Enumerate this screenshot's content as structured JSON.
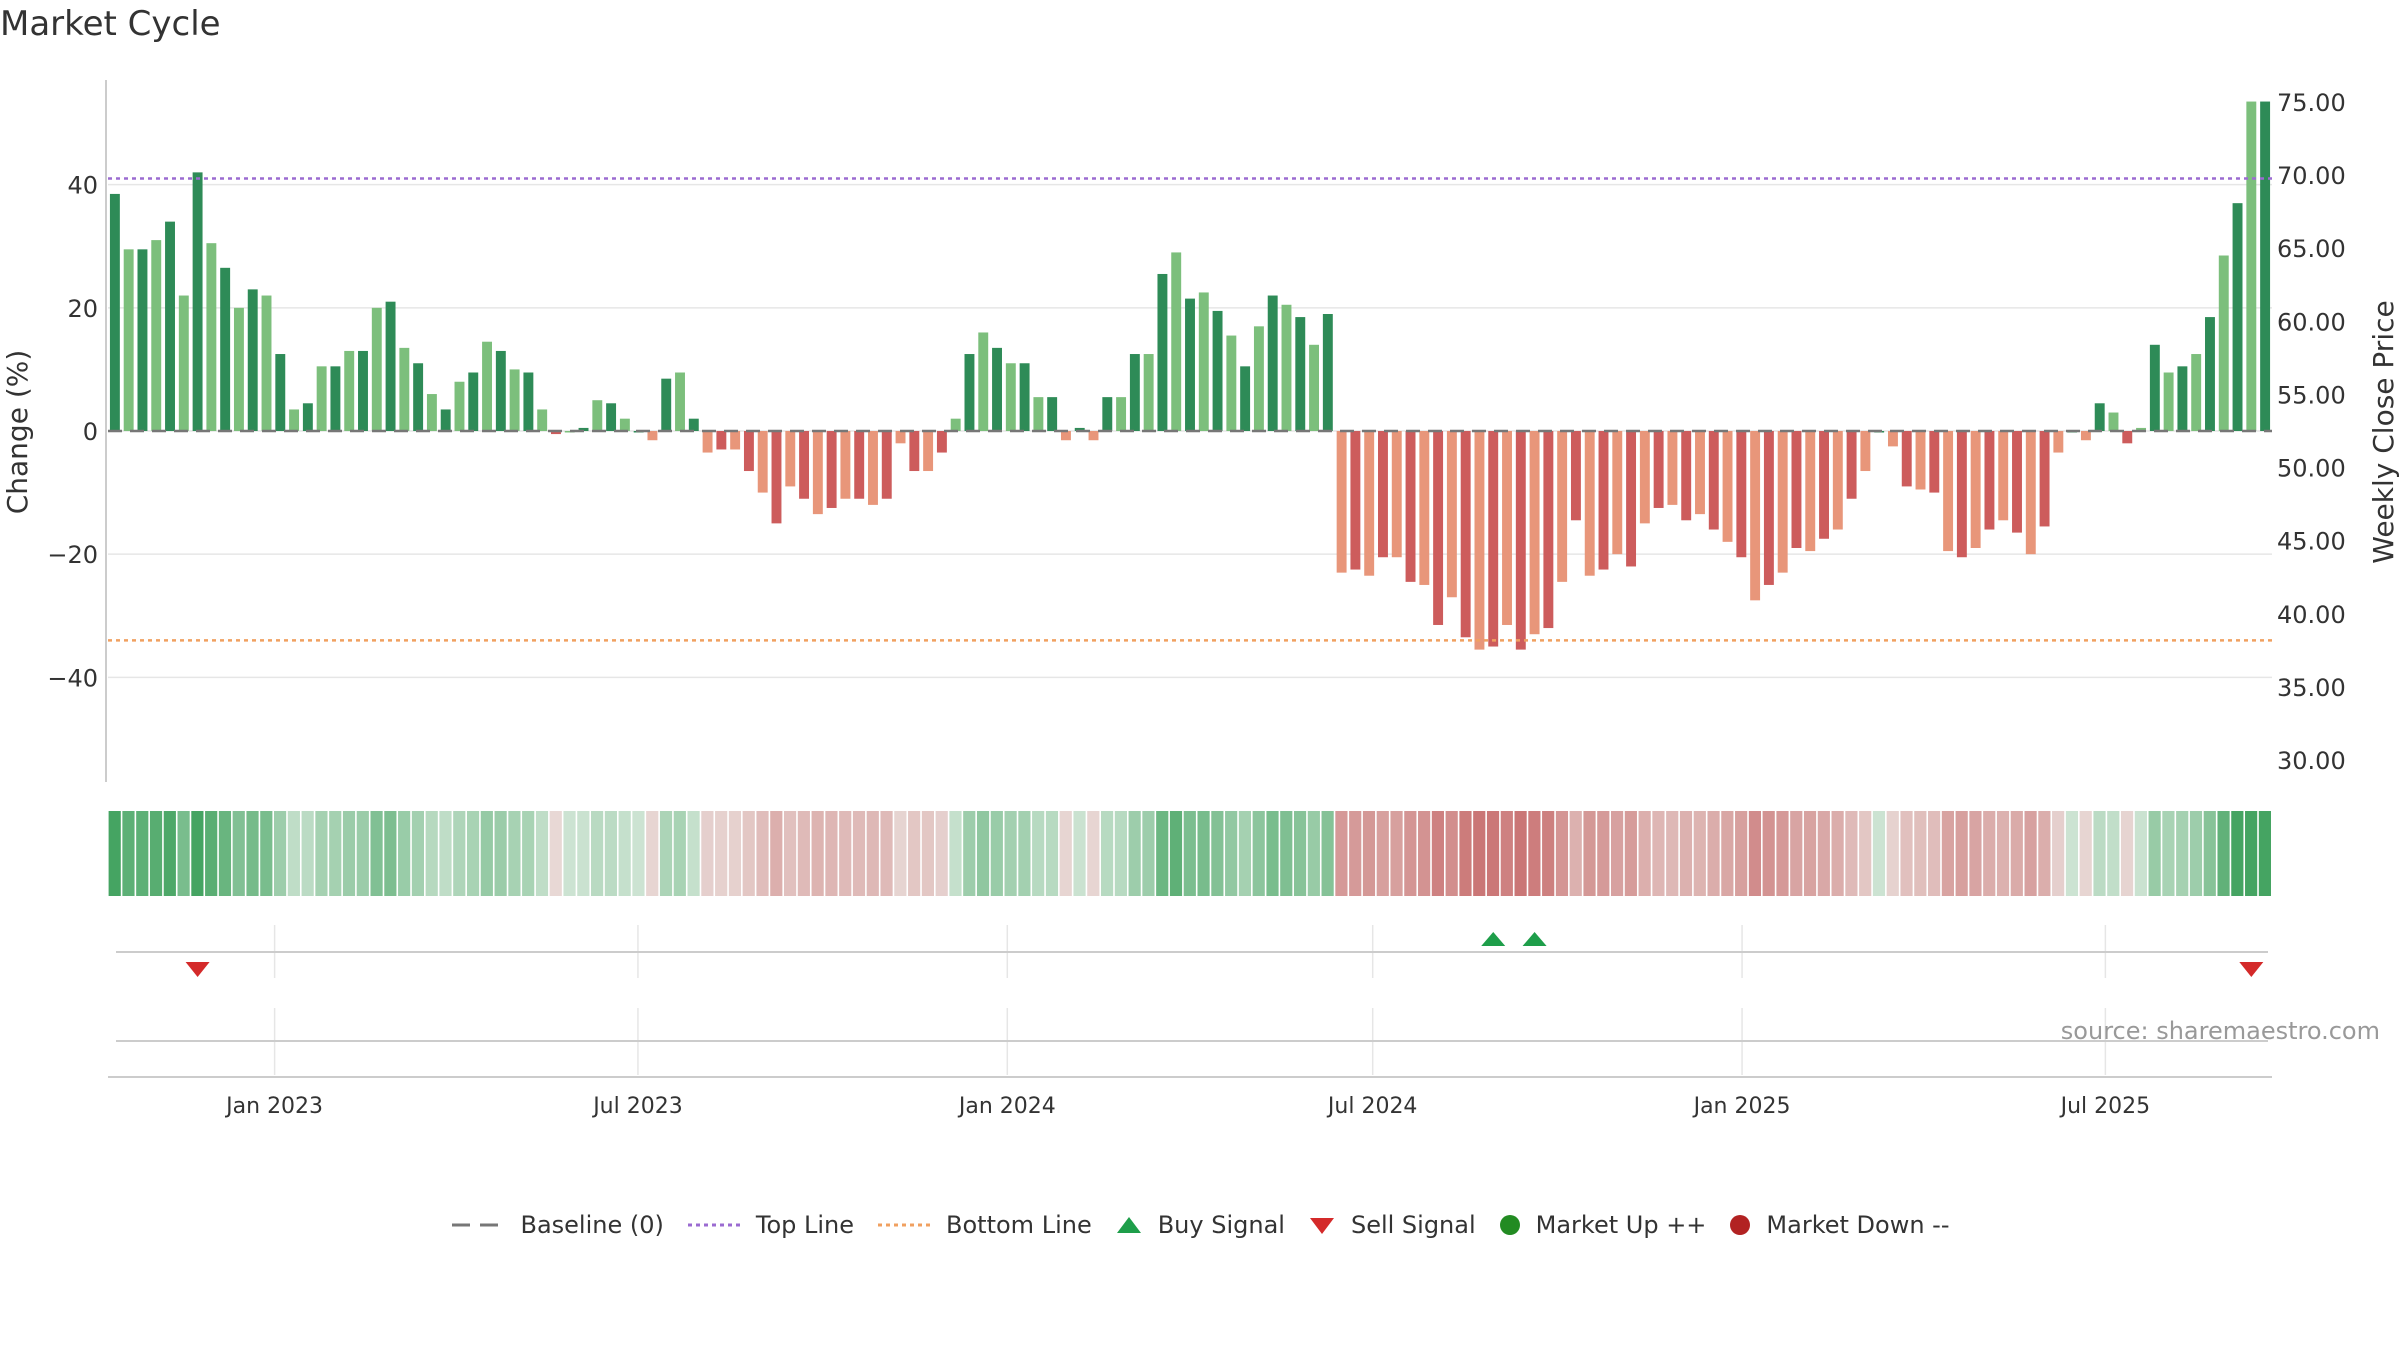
{
  "title": "Market Cycle",
  "source": "source: sharemaestro.com",
  "chart_data": {
    "type": "bar",
    "title": "Market Cycle",
    "ylabel": "Change (%)",
    "y2label": "Weekly Close Price",
    "ylim": [
      -57,
      57
    ],
    "y2lim": [
      28.5,
      76.5
    ],
    "yticks": [
      40,
      20,
      0,
      -20,
      -40
    ],
    "ytick_labels": [
      "40",
      "20",
      "0",
      "−20",
      "−40"
    ],
    "y2ticks": [
      75,
      70,
      65,
      60,
      55,
      50,
      45,
      40,
      35,
      30
    ],
    "y2tick_labels": [
      "75.00",
      "70.00",
      "65.00",
      "60.00",
      "55.00",
      "50.00",
      "45.00",
      "40.00",
      "35.00",
      "30.00"
    ],
    "x_start": "2022-10-10",
    "x_end": "2025-09-22",
    "x_ticks": [
      {
        "date": "2023-01-01",
        "label": "Jan 2023"
      },
      {
        "date": "2023-07-01",
        "label": "Jul 2023"
      },
      {
        "date": "2024-01-01",
        "label": "Jan 2024"
      },
      {
        "date": "2024-07-01",
        "label": "Jul 2024"
      },
      {
        "date": "2025-01-01",
        "label": "Jan 2025"
      },
      {
        "date": "2025-07-01",
        "label": "Jul 2025"
      }
    ],
    "top_line": 41,
    "bottom_line": -34,
    "baseline": 0,
    "grid": true,
    "legend_position": "bottom",
    "series": [
      {
        "name": "Change (%)",
        "values": [
          38.5,
          29.5,
          29.5,
          31,
          34,
          22,
          42,
          30.5,
          26.5,
          20,
          23,
          22,
          12.5,
          3.5,
          4.5,
          10.5,
          10.5,
          13,
          13,
          20,
          21,
          13.5,
          11,
          6,
          3.5,
          8,
          9.5,
          14.5,
          13,
          10,
          9.5,
          3.5,
          -0.5,
          0,
          0.5,
          5,
          4.5,
          2,
          0,
          -1.5,
          8.5,
          9.5,
          2,
          -3.5,
          -3,
          -3,
          -6.5,
          -10,
          -15,
          -9,
          -11,
          -13.5,
          -12.5,
          -11,
          -11,
          -12,
          -11,
          -2,
          -6.5,
          -6.5,
          -3.5,
          2,
          12.5,
          16,
          13.5,
          11,
          11,
          5.5,
          5.5,
          -1.5,
          0.5,
          -1.5,
          5.5,
          5.5,
          12.5,
          12.5,
          25.5,
          29,
          21.5,
          22.5,
          19.5,
          15.5,
          10.5,
          17,
          22,
          20.5,
          18.5,
          14,
          19,
          -23,
          -22.5,
          -23.5,
          -20.5,
          -20.5,
          -24.5,
          -25,
          -31.5,
          -27,
          -33.5,
          -35.5,
          -35,
          -31.5,
          -35.5,
          -33,
          -32,
          -24.5,
          -14.5,
          -23.5,
          -22.5,
          -20,
          -22,
          -15,
          -12.5,
          -12,
          -14.5,
          -13.5,
          -16,
          -18,
          -20.5,
          -27.5,
          -25,
          -23,
          -19,
          -19.5,
          -17.5,
          -16,
          -11,
          -6.5,
          0,
          -2.5,
          -9,
          -9.5,
          -10,
          -19.5,
          -20.5,
          -19,
          -16,
          -14.5,
          -16.5,
          -20,
          -15.5,
          -3.5,
          0,
          -1.5,
          4.5,
          3,
          -2,
          0.5,
          14,
          9.5,
          10.5,
          12.5,
          18.5,
          28.5,
          37,
          53.5,
          53.5
        ]
      }
    ],
    "signals": [
      {
        "type": "sell",
        "index": 6
      },
      {
        "type": "buy",
        "index": 100
      },
      {
        "type": "buy",
        "index": 103
      },
      {
        "type": "sell",
        "index": 155
      }
    ],
    "colors": {
      "up_dark": "#2e8b57",
      "up_light": "#7cbf7c",
      "down_dark": "#cd5c5c",
      "down_light": "#e8967a",
      "top_line": "#9b6bd1",
      "bottom_line": "#f0a060",
      "buy": "#1e9e4a",
      "sell": "#d42a2a",
      "market_up": "#228b22",
      "market_down": "#b22222",
      "baseline": "#777777",
      "grid": "#e6e6e6",
      "axis": "#cccccc"
    }
  },
  "legend": {
    "baseline": "Baseline (0)",
    "top_line": "Top Line",
    "bottom_line": "Bottom Line",
    "buy_signal": "Buy Signal",
    "sell_signal": "Sell Signal",
    "market_up": "Market Up ++",
    "market_down": "Market Down --"
  }
}
